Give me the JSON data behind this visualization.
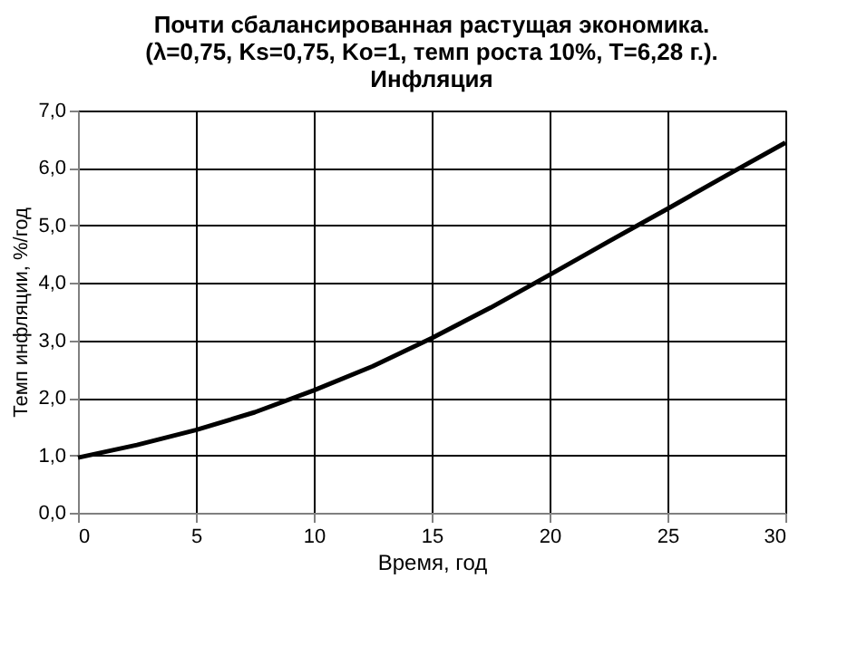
{
  "chart_data": {
    "type": "line",
    "title": "Почти сбалансированная растущая экономика.\n(λ=0,75, Ks=0,75, Ko=1, темп роста 10%, T=6,28 г.).\nИнфляция",
    "xlabel": "Время, год",
    "ylabel": "Темп инфляции, %/год",
    "x": [
      0,
      2.5,
      5,
      7.5,
      10,
      12.5,
      15,
      17.5,
      20,
      22.5,
      25,
      27.5,
      30
    ],
    "series": [
      {
        "color": "#000000",
        "values": [
          0.96,
          1.18,
          1.44,
          1.75,
          2.13,
          2.55,
          3.04,
          3.57,
          4.14,
          4.72,
          5.29,
          5.87,
          6.44
        ]
      }
    ],
    "xlim": [
      0,
      30
    ],
    "xticks": [
      0,
      5,
      10,
      15,
      20,
      25,
      30
    ],
    "ylim": [
      0,
      7
    ],
    "yticks": [
      {
        "value": 0,
        "label": "0,0"
      },
      {
        "value": 1,
        "label": "1,0"
      },
      {
        "value": 2,
        "label": "2,0"
      },
      {
        "value": 3,
        "label": "3,0"
      },
      {
        "value": 4,
        "label": "4,0"
      },
      {
        "value": 5,
        "label": "5,0"
      },
      {
        "value": 6,
        "label": "6,0"
      },
      {
        "value": 7,
        "label": "7,0"
      }
    ],
    "grid": true,
    "marker": "none",
    "line_style": "solid"
  }
}
